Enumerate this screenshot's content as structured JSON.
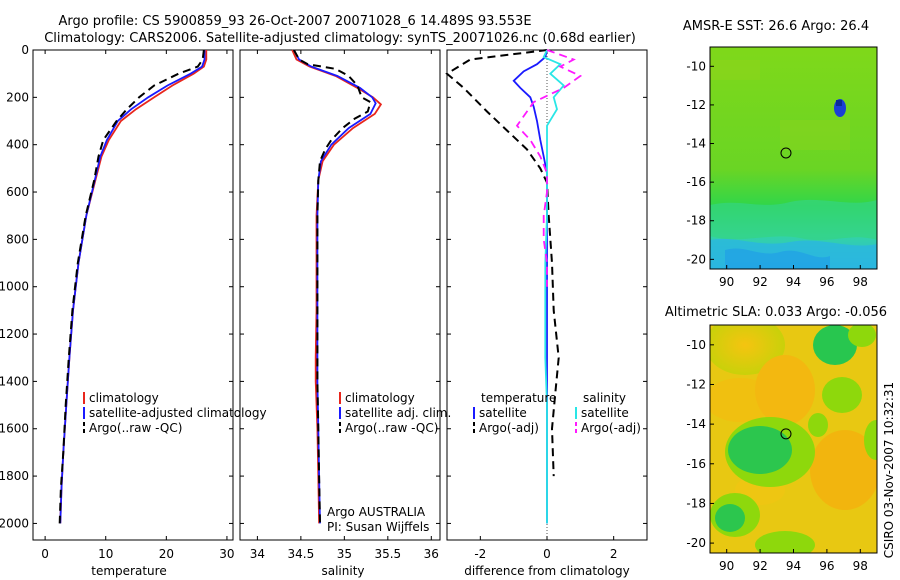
{
  "title": {
    "line1": "Argo profile: CS 5900859_93 26-Oct-2007 20071028_6 14.489S 93.553E",
    "line2": "Climatology: CARS2006. Satellite-adjusted climatology: synTS_20071026.nc (0.68d earlier)"
  },
  "colors": {
    "climatology": "#e8261c",
    "satellite": "#1a1aff",
    "argo": "#000000",
    "salinity_satellite": "#29e6e6",
    "salinity_argo": "#ff19ff",
    "sst_warm": "#8ed80c",
    "sst_cool": "#21d84b",
    "sst_cold": "#2bc3d8",
    "sla_high": "#f2c614",
    "sla_mid": "#8ed80c",
    "sla_low": "#27c64f"
  },
  "chart_data": [
    {
      "type": "line",
      "name": "temperature",
      "xlabel": "temperature",
      "ylabel": "",
      "xlim": [
        -2,
        31
      ],
      "ylim": [
        2070,
        0
      ],
      "xticks": [
        0,
        10,
        20,
        30
      ],
      "yticks": [
        0,
        200,
        400,
        600,
        800,
        1000,
        1200,
        1400,
        1600,
        1800,
        2000
      ],
      "series": [
        {
          "name": "climatology",
          "role": "climatology",
          "dash": "",
          "points": [
            [
              26.6,
              0
            ],
            [
              26.6,
              40
            ],
            [
              26.2,
              70
            ],
            [
              24.5,
              100
            ],
            [
              21.0,
              150
            ],
            [
              18.0,
              200
            ],
            [
              15.0,
              250
            ],
            [
              12.5,
              300
            ],
            [
              10.5,
              380
            ],
            [
              9.3,
              450
            ],
            [
              8.3,
              550
            ],
            [
              6.8,
              700
            ],
            [
              5.5,
              900
            ],
            [
              4.6,
              1100
            ],
            [
              4.0,
              1300
            ],
            [
              3.5,
              1500
            ],
            [
              3.0,
              1700
            ],
            [
              2.7,
              1850
            ],
            [
              2.5,
              2000
            ]
          ]
        },
        {
          "name": "satellite-adjusted climatology",
          "role": "satellite",
          "dash": "",
          "points": [
            [
              26.3,
              0
            ],
            [
              26.3,
              40
            ],
            [
              25.9,
              70
            ],
            [
              24.0,
              100
            ],
            [
              20.2,
              150
            ],
            [
              17.0,
              200
            ],
            [
              14.2,
              250
            ],
            [
              12.0,
              300
            ],
            [
              10.2,
              380
            ],
            [
              9.1,
              450
            ],
            [
              8.2,
              550
            ],
            [
              6.8,
              700
            ],
            [
              5.5,
              900
            ],
            [
              4.6,
              1100
            ],
            [
              4.0,
              1300
            ],
            [
              3.5,
              1500
            ],
            [
              3.0,
              1700
            ],
            [
              2.7,
              1850
            ],
            [
              2.5,
              2000
            ]
          ]
        },
        {
          "name": "Argo(..raw -QC)",
          "role": "argo",
          "dash": "8,5",
          "points": [
            [
              26.2,
              0
            ],
            [
              26.0,
              40
            ],
            [
              25.2,
              70
            ],
            [
              22.0,
              100
            ],
            [
              18.0,
              150
            ],
            [
              15.5,
              200
            ],
            [
              13.5,
              250
            ],
            [
              11.8,
              300
            ],
            [
              9.6,
              380
            ],
            [
              8.8,
              450
            ],
            [
              8.1,
              550
            ],
            [
              6.7,
              700
            ],
            [
              5.4,
              900
            ],
            [
              4.5,
              1100
            ],
            [
              3.9,
              1300
            ],
            [
              3.4,
              1500
            ],
            [
              3.0,
              1700
            ],
            [
              2.6,
              1850
            ],
            [
              2.4,
              2000
            ]
          ]
        }
      ],
      "legend": [
        "climatology",
        "satellite-adjusted climatology",
        "Argo(..raw -QC)"
      ]
    },
    {
      "type": "line",
      "name": "salinity",
      "xlabel": "salinity",
      "ylabel": "",
      "xlim": [
        33.8,
        36.1
      ],
      "ylim": [
        2070,
        0
      ],
      "xticks": [
        34,
        34.5,
        35,
        35.5,
        36
      ],
      "series": [
        {
          "name": "climatology",
          "role": "climatology",
          "dash": "",
          "points": [
            [
              34.4,
              0
            ],
            [
              34.45,
              40
            ],
            [
              34.6,
              70
            ],
            [
              34.9,
              110
            ],
            [
              35.15,
              160
            ],
            [
              35.33,
              200
            ],
            [
              35.42,
              230
            ],
            [
              35.35,
              270
            ],
            [
              35.1,
              330
            ],
            [
              34.88,
              400
            ],
            [
              34.75,
              470
            ],
            [
              34.7,
              550
            ],
            [
              34.68,
              700
            ],
            [
              34.68,
              900
            ],
            [
              34.68,
              1100
            ],
            [
              34.67,
              1300
            ],
            [
              34.67,
              1400
            ],
            [
              34.69,
              1600
            ],
            [
              34.7,
              1800
            ],
            [
              34.71,
              2000
            ]
          ]
        },
        {
          "name": "satellite adj. clim.",
          "role": "satellite",
          "dash": "",
          "points": [
            [
              34.42,
              0
            ],
            [
              34.48,
              40
            ],
            [
              34.62,
              70
            ],
            [
              34.92,
              110
            ],
            [
              35.18,
              160
            ],
            [
              35.32,
              200
            ],
            [
              35.36,
              225
            ],
            [
              35.3,
              270
            ],
            [
              35.05,
              330
            ],
            [
              34.85,
              400
            ],
            [
              34.73,
              470
            ],
            [
              34.7,
              550
            ],
            [
              34.69,
              700
            ],
            [
              34.69,
              900
            ],
            [
              34.69,
              1100
            ],
            [
              34.69,
              1300
            ],
            [
              34.69,
              1400
            ],
            [
              34.7,
              1600
            ],
            [
              34.71,
              1800
            ],
            [
              34.72,
              2000
            ]
          ]
        },
        {
          "name": "Argo(..raw -QC)",
          "role": "argo",
          "dash": "8,5",
          "points": [
            [
              34.42,
              0
            ],
            [
              34.48,
              40
            ],
            [
              34.58,
              60
            ],
            [
              34.9,
              80
            ],
            [
              35.05,
              110
            ],
            [
              35.15,
              150
            ],
            [
              35.2,
              200
            ],
            [
              35.3,
              220
            ],
            [
              35.27,
              260
            ],
            [
              35.12,
              290
            ],
            [
              34.98,
              330
            ],
            [
              34.85,
              380
            ],
            [
              34.78,
              420
            ],
            [
              34.72,
              470
            ],
            [
              34.7,
              550
            ],
            [
              34.69,
              700
            ],
            [
              34.69,
              900
            ],
            [
              34.69,
              1100
            ],
            [
              34.69,
              1300
            ],
            [
              34.69,
              1400
            ],
            [
              34.7,
              1600
            ],
            [
              34.71,
              1800
            ],
            [
              34.72,
              2000
            ]
          ]
        }
      ],
      "legend": [
        "climatology",
        "satellite adj. clim.",
        "Argo(..raw -QC)"
      ],
      "annotation": [
        "Argo AUSTRALIA",
        "PI: Susan Wijffels"
      ]
    },
    {
      "type": "line",
      "name": "difference",
      "xlabel": "difference from climatology",
      "ylabel": "",
      "xlim": [
        -3,
        3
      ],
      "ylim": [
        2070,
        0
      ],
      "xticks": [
        -2,
        0,
        2
      ],
      "series": [
        {
          "name": "temperature satellite",
          "role": "satellite",
          "dash": "",
          "points": [
            [
              0.0,
              0
            ],
            [
              -0.05,
              30
            ],
            [
              -0.3,
              60
            ],
            [
              -0.7,
              90
            ],
            [
              -1.0,
              130
            ],
            [
              -0.8,
              160
            ],
            [
              -0.5,
              200
            ],
            [
              -0.4,
              240
            ],
            [
              -0.3,
              300
            ],
            [
              -0.2,
              380
            ],
            [
              -0.1,
              450
            ],
            [
              0.0,
              520
            ],
            [
              0.0,
              2000
            ]
          ]
        },
        {
          "name": "temperature Argo(-adj)",
          "role": "argo",
          "dash": "8,5",
          "points": [
            [
              0.0,
              0
            ],
            [
              -2.3,
              40
            ],
            [
              -3.0,
              100
            ],
            [
              -2.5,
              160
            ],
            [
              -1.8,
              260
            ],
            [
              -1.2,
              340
            ],
            [
              -0.6,
              420
            ],
            [
              -0.2,
              500
            ],
            [
              0.0,
              560
            ],
            [
              0.05,
              700
            ],
            [
              0.15,
              900
            ],
            [
              0.2,
              1100
            ],
            [
              0.35,
              1300
            ],
            [
              0.25,
              1450
            ],
            [
              0.15,
              1600
            ],
            [
              0.2,
              1800
            ]
          ]
        },
        {
          "name": "salinity satellite",
          "role": "salinity_satellite",
          "dash": "",
          "points": [
            [
              0.0,
              0
            ],
            [
              -0.1,
              30
            ],
            [
              0.4,
              60
            ],
            [
              0.1,
              100
            ],
            [
              0.5,
              150
            ],
            [
              0.2,
              200
            ],
            [
              0.3,
              250
            ],
            [
              0.0,
              320
            ],
            [
              0.0,
              500
            ],
            [
              0.0,
              700
            ],
            [
              -0.05,
              900
            ],
            [
              -0.05,
              1100
            ],
            [
              -0.05,
              1300
            ],
            [
              0.0,
              1500
            ],
            [
              0.0,
              1700
            ],
            [
              0.0,
              2000
            ]
          ]
        },
        {
          "name": "salinity Argo(-adj)",
          "role": "salinity_argo",
          "dash": "8,5",
          "points": [
            [
              0.0,
              0
            ],
            [
              0.8,
              40
            ],
            [
              0.4,
              70
            ],
            [
              1.0,
              110
            ],
            [
              0.5,
              160
            ],
            [
              -0.4,
              220
            ],
            [
              -0.6,
              260
            ],
            [
              -0.9,
              320
            ],
            [
              -0.5,
              380
            ],
            [
              -0.2,
              450
            ],
            [
              0.0,
              520
            ],
            [
              0.0,
              600
            ],
            [
              -0.1,
              700
            ],
            [
              -0.1,
              800
            ],
            [
              0.0,
              900
            ],
            [
              0.0,
              1000
            ]
          ]
        }
      ],
      "legend_groups": [
        {
          "heading": "temperature",
          "entries": [
            "satellite",
            "Argo(-adj)"
          ]
        },
        {
          "heading": "salinity",
          "entries": [
            "satellite",
            "Argo(-adj)"
          ]
        }
      ]
    },
    {
      "type": "heatmap",
      "name": "sst_map",
      "title": "AMSR-E SST: 26.6 Argo: 26.4",
      "xlim": [
        89,
        99
      ],
      "ylim": [
        -20.5,
        -9
      ],
      "xticks": [
        90,
        92,
        94,
        96,
        98
      ],
      "yticks": [
        -10,
        -12,
        -14,
        -16,
        -18,
        -20
      ],
      "marker": [
        93.55,
        -14.49
      ]
    },
    {
      "type": "heatmap",
      "name": "sla_map",
      "title": "Altimetric SLA: 0.033 Argo: -0.056",
      "xlim": [
        89,
        99
      ],
      "ylim": [
        -20.5,
        -9
      ],
      "xticks": [
        90,
        92,
        94,
        96,
        98
      ],
      "yticks": [
        -10,
        -12,
        -14,
        -16,
        -18,
        -20
      ],
      "marker": [
        93.55,
        -14.49
      ]
    }
  ],
  "footer": {
    "stamp": "CSIRO 03-Nov-2007 10:32:31"
  }
}
